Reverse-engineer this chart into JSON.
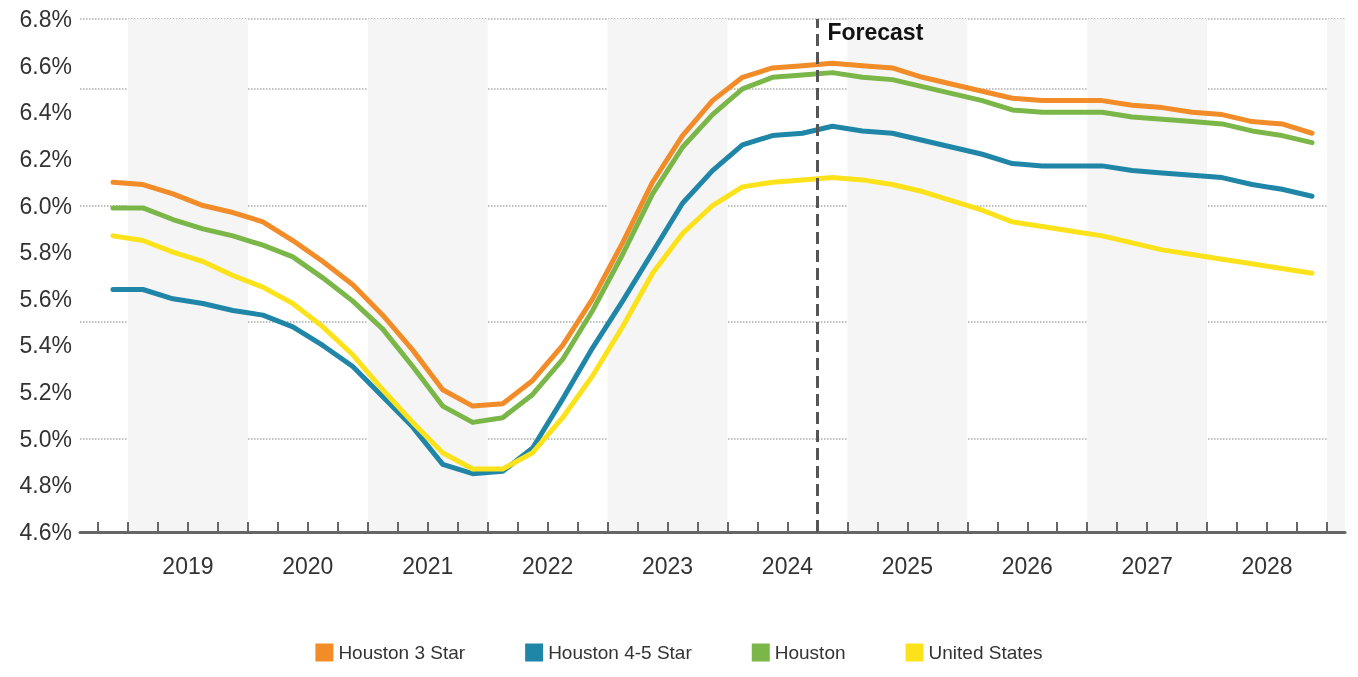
{
  "chart_data": {
    "type": "line",
    "x": [
      2018.875,
      2019.125,
      2019.375,
      2019.625,
      2019.875,
      2020.125,
      2020.375,
      2020.625,
      2020.875,
      2021.125,
      2021.375,
      2021.625,
      2021.875,
      2022.125,
      2022.375,
      2022.625,
      2022.875,
      2023.125,
      2023.375,
      2023.625,
      2023.875,
      2024.125,
      2024.375,
      2024.625,
      2024.875,
      2025.125,
      2025.375,
      2025.625,
      2025.875,
      2026.125,
      2026.375,
      2026.625,
      2026.875,
      2027.125,
      2027.375,
      2027.625,
      2027.875,
      2028.125,
      2028.375,
      2028.625,
      2028.875
    ],
    "series": [
      {
        "name": "Houston 3 Star",
        "color": "#f28c28",
        "values": [
          6.1,
          6.09,
          6.05,
          6.0,
          5.97,
          5.93,
          5.85,
          5.76,
          5.66,
          5.53,
          5.38,
          5.21,
          5.14,
          5.15,
          5.25,
          5.4,
          5.6,
          5.84,
          6.1,
          6.3,
          6.45,
          6.55,
          6.59,
          6.6,
          6.61,
          6.6,
          6.59,
          6.55,
          6.52,
          6.49,
          6.46,
          6.45,
          6.45,
          6.45,
          6.43,
          6.42,
          6.4,
          6.39,
          6.36,
          6.35,
          6.31
        ]
      },
      {
        "name": "Houston 4-5 Star",
        "color": "#1f86a8",
        "values": [
          5.64,
          5.64,
          5.6,
          5.58,
          5.55,
          5.53,
          5.48,
          5.4,
          5.31,
          5.18,
          5.05,
          4.89,
          4.85,
          4.86,
          4.96,
          5.17,
          5.39,
          5.59,
          5.8,
          6.01,
          6.15,
          6.26,
          6.3,
          6.31,
          6.34,
          6.32,
          6.31,
          6.28,
          6.25,
          6.22,
          6.18,
          6.17,
          6.17,
          6.17,
          6.15,
          6.14,
          6.13,
          6.12,
          6.09,
          6.07,
          6.04
        ]
      },
      {
        "name": "Houston",
        "color": "#7ab648",
        "values": [
          5.99,
          5.99,
          5.94,
          5.9,
          5.87,
          5.83,
          5.78,
          5.69,
          5.59,
          5.47,
          5.31,
          5.14,
          5.07,
          5.09,
          5.19,
          5.34,
          5.55,
          5.79,
          6.05,
          6.25,
          6.39,
          6.5,
          6.55,
          6.56,
          6.57,
          6.55,
          6.54,
          6.51,
          6.48,
          6.45,
          6.41,
          6.4,
          6.4,
          6.4,
          6.38,
          6.37,
          6.36,
          6.35,
          6.32,
          6.3,
          6.27
        ]
      },
      {
        "name": "United States",
        "color": "#fce21b",
        "values": [
          5.87,
          5.85,
          5.8,
          5.76,
          5.7,
          5.65,
          5.58,
          5.48,
          5.36,
          5.21,
          5.07,
          4.94,
          4.87,
          4.87,
          4.94,
          5.09,
          5.27,
          5.48,
          5.71,
          5.88,
          6.0,
          6.08,
          6.1,
          6.11,
          6.12,
          6.11,
          6.09,
          6.06,
          6.02,
          5.98,
          5.93,
          5.91,
          5.89,
          5.87,
          5.84,
          5.81,
          5.79,
          5.77,
          5.75,
          5.73,
          5.71
        ]
      }
    ],
    "xlim": [
      2018.6,
      2029.15
    ],
    "xticks": [
      {
        "value": 2018.75,
        "label": null
      },
      {
        "value": 2019,
        "label": null
      },
      {
        "value": 2019.25,
        "label": null
      },
      {
        "value": 2019.5,
        "label": "2019"
      },
      {
        "value": 2019.75,
        "label": null
      },
      {
        "value": 2020,
        "label": null
      },
      {
        "value": 2020.25,
        "label": null
      },
      {
        "value": 2020.5,
        "label": "2020"
      },
      {
        "value": 2020.75,
        "label": null
      },
      {
        "value": 2021,
        "label": null
      },
      {
        "value": 2021.25,
        "label": null
      },
      {
        "value": 2021.5,
        "label": "2021"
      },
      {
        "value": 2021.75,
        "label": null
      },
      {
        "value": 2022,
        "label": null
      },
      {
        "value": 2022.25,
        "label": null
      },
      {
        "value": 2022.5,
        "label": "2022"
      },
      {
        "value": 2022.75,
        "label": null
      },
      {
        "value": 2023,
        "label": null
      },
      {
        "value": 2023.25,
        "label": null
      },
      {
        "value": 2023.5,
        "label": "2023"
      },
      {
        "value": 2023.75,
        "label": null
      },
      {
        "value": 2024,
        "label": null
      },
      {
        "value": 2024.25,
        "label": null
      },
      {
        "value": 2024.5,
        "label": "2024"
      },
      {
        "value": 2024.75,
        "label": null
      },
      {
        "value": 2025,
        "label": null
      },
      {
        "value": 2025.25,
        "label": null
      },
      {
        "value": 2025.5,
        "label": "2025"
      },
      {
        "value": 2025.75,
        "label": null
      },
      {
        "value": 2026,
        "label": null
      },
      {
        "value": 2026.25,
        "label": null
      },
      {
        "value": 2026.5,
        "label": "2026"
      },
      {
        "value": 2026.75,
        "label": null
      },
      {
        "value": 2027,
        "label": null
      },
      {
        "value": 2027.25,
        "label": null
      },
      {
        "value": 2027.5,
        "label": "2027"
      },
      {
        "value": 2027.75,
        "label": null
      },
      {
        "value": 2028,
        "label": null
      },
      {
        "value": 2028.25,
        "label": null
      },
      {
        "value": 2028.5,
        "label": "2028"
      },
      {
        "value": 2028.75,
        "label": null
      },
      {
        "value": 2029,
        "label": null
      }
    ],
    "ylim": [
      4.6,
      6.8
    ],
    "yticks": [
      {
        "value": 4.6,
        "label": "4.6%"
      },
      {
        "value": 4.8,
        "label": "4.8%"
      },
      {
        "value": 5.0,
        "label": "5.0%"
      },
      {
        "value": 5.2,
        "label": "5.2%"
      },
      {
        "value": 5.4,
        "label": "5.4%"
      },
      {
        "value": 5.6,
        "label": "5.6%"
      },
      {
        "value": 5.8,
        "label": "5.8%"
      },
      {
        "value": 6.0,
        "label": "6.0%"
      },
      {
        "value": 6.2,
        "label": "6.2%"
      },
      {
        "value": 6.4,
        "label": "6.4%"
      },
      {
        "value": 6.6,
        "label": "6.6%"
      },
      {
        "value": 6.8,
        "label": "6.8%"
      }
    ],
    "grid": "y",
    "legend": "bottom",
    "marker": "none",
    "line_style": "solid",
    "ref_lines": [
      {
        "axis": "x",
        "value": 2024.75,
        "label": "Forecast",
        "color": "#555555",
        "line_style": "dashed"
      }
    ],
    "bands": [
      {
        "axis": "x",
        "from": 2019,
        "to": 2020,
        "color": "#f5f5f5"
      },
      {
        "axis": "x",
        "from": 2021,
        "to": 2022,
        "color": "#f5f5f5"
      },
      {
        "axis": "x",
        "from": 2023,
        "to": 2024,
        "color": "#f5f5f5"
      },
      {
        "axis": "x",
        "from": 2025,
        "to": 2026,
        "color": "#f5f5f5"
      },
      {
        "axis": "x",
        "from": 2027,
        "to": 2028,
        "color": "#f5f5f5"
      },
      {
        "axis": "x",
        "from": 2029,
        "to": 2029.15,
        "color": "#f5f5f5"
      }
    ]
  }
}
